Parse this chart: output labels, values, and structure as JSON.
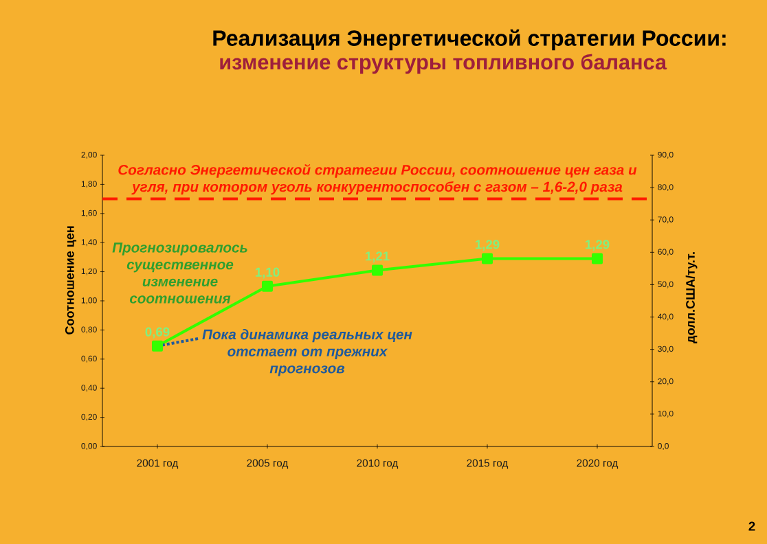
{
  "chart_data": {
    "type": "line",
    "title": "Реализация Энергетической стратегии России:",
    "subtitle": "изменение структуры топливного баланса",
    "ylabel": "Соотношение цен",
    "y2label": "долл.США/ту.т.",
    "categories": [
      "2001 год",
      "2005 год",
      "2010 год",
      "2015 год",
      "2020 год"
    ],
    "series": [
      {
        "color": "#33ff00",
        "values": [
          0.69,
          1.1,
          1.21,
          1.29,
          1.29
        ],
        "value_labels": [
          "0,69",
          "1,10",
          "1,21",
          "1,29",
          "1,29"
        ]
      }
    ],
    "ylim": [
      0,
      2
    ],
    "yticks": [
      {
        "value": 0,
        "label": "0,00"
      },
      {
        "value": 0.2,
        "label": "0,20"
      },
      {
        "value": 0.4,
        "label": "0,40"
      },
      {
        "value": 0.6,
        "label": "0,60"
      },
      {
        "value": 0.8,
        "label": "0,80"
      },
      {
        "value": 1,
        "label": "1,00"
      },
      {
        "value": 1.2,
        "label": "1,20"
      },
      {
        "value": 1.4,
        "label": "1,40"
      },
      {
        "value": 1.6,
        "label": "1,60"
      },
      {
        "value": 1.8,
        "label": "1,80"
      },
      {
        "value": 2,
        "label": "2,00"
      }
    ],
    "y2lim": [
      0,
      90
    ],
    "y2ticks": [
      {
        "value": 0,
        "label": "0,0"
      },
      {
        "value": 10,
        "label": "10,0"
      },
      {
        "value": 20,
        "label": "20,0"
      },
      {
        "value": 30,
        "label": "30,0"
      },
      {
        "value": 40,
        "label": "40,0"
      },
      {
        "value": 50,
        "label": "50,0"
      },
      {
        "value": 60,
        "label": "60,0"
      },
      {
        "value": 70,
        "label": "70,0"
      },
      {
        "value": 80,
        "label": "80,0"
      },
      {
        "value": 90,
        "label": "90,0"
      }
    ],
    "ref_lines": [
      {
        "axis": "y",
        "value": 1.7,
        "label": "Согласно Энергетической стратегии России, соотношение цен газа и угля, при котором уголь конкурентоспособен с газом – 1,6-2,0 раза",
        "color": "#ff1a00",
        "line_style": "dashed"
      }
    ],
    "annotations": [
      "Прогнозировалось существенное изменение соотношения",
      {
        "text": "Пока динамика реальных цен отстает от прежних прогнозов",
        "x": "2001 год",
        "y": 0.69
      },
      "2"
    ],
    "marker": "square",
    "line_style": "solid"
  }
}
